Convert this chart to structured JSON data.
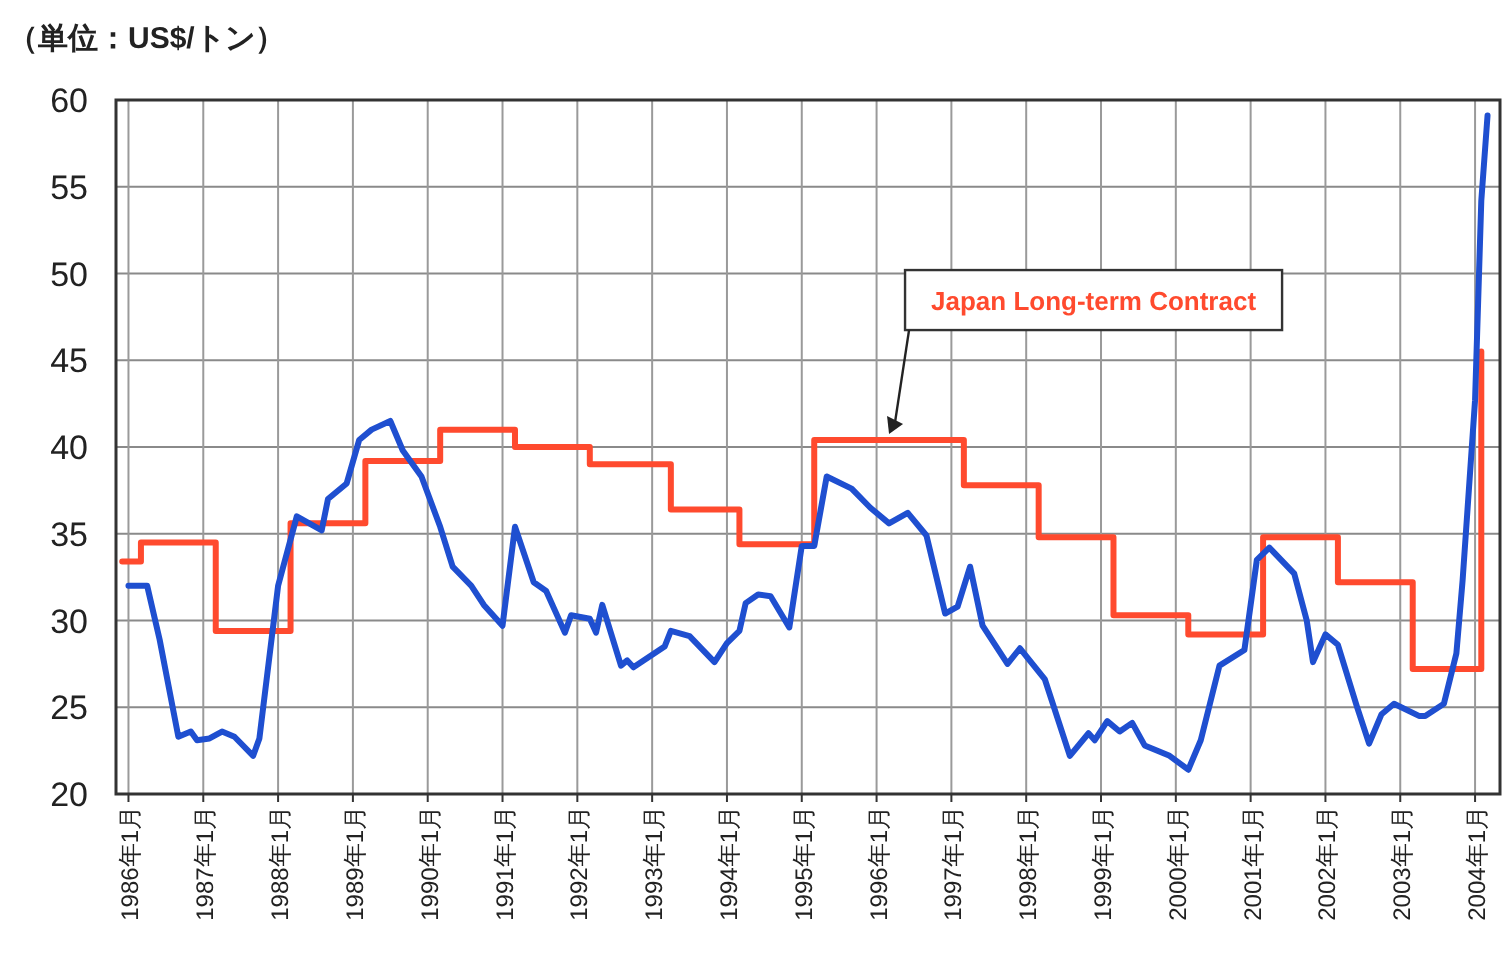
{
  "chart_data": {
    "type": "line",
    "ylabel": "（単位：US$/トン）",
    "xlim": [
      "1985-11",
      "2004-05"
    ],
    "ylim": [
      20,
      60
    ],
    "yticks": [
      20,
      25,
      30,
      35,
      40,
      45,
      50,
      55,
      60
    ],
    "xticks": [
      {
        "value": "1986-01",
        "label": "1986年1月"
      },
      {
        "value": "1987-01",
        "label": "1987年1月"
      },
      {
        "value": "1988-01",
        "label": "1988年1月"
      },
      {
        "value": "1989-01",
        "label": "1989年1月"
      },
      {
        "value": "1990-01",
        "label": "1990年1月"
      },
      {
        "value": "1991-01",
        "label": "1991年1月"
      },
      {
        "value": "1992-01",
        "label": "1992年1月"
      },
      {
        "value": "1993-01",
        "label": "1993年1月"
      },
      {
        "value": "1994-01",
        "label": "1994年1月"
      },
      {
        "value": "1995-01",
        "label": "1995年1月"
      },
      {
        "value": "1996-01",
        "label": "1996年1月"
      },
      {
        "value": "1997-01",
        "label": "1997年1月"
      },
      {
        "value": "1998-01",
        "label": "1998年1月"
      },
      {
        "value": "1999-01",
        "label": "1999年1月"
      },
      {
        "value": "2000-01",
        "label": "2000年1月"
      },
      {
        "value": "2001-01",
        "label": "2001年1月"
      },
      {
        "value": "2002-01",
        "label": "2002年1月"
      },
      {
        "value": "2003-01",
        "label": "2003年1月"
      },
      {
        "value": "2004-01",
        "label": "2004年1月"
      }
    ],
    "grid": true,
    "legend": false,
    "series": [
      {
        "name": "Japan Long-term Contract",
        "type": "step",
        "color": "#ff4a2e",
        "x": [
          "1985-12",
          "1986-03",
          "1987-03",
          "1988-03",
          "1989-03",
          "1990-03",
          "1991-03",
          "1992-03",
          "1993-04",
          "1994-03",
          "1995-03",
          "1997-03",
          "1998-03",
          "1999-03",
          "2000-03",
          "2001-03",
          "2002-03",
          "2003-03",
          "2004-02"
        ],
        "values": [
          33.4,
          34.5,
          29.4,
          35.6,
          39.2,
          41.0,
          40.0,
          39.0,
          36.4,
          34.4,
          40.4,
          37.8,
          34.8,
          30.3,
          29.2,
          34.8,
          32.2,
          27.2,
          45.5
        ]
      },
      {
        "color": "#1f4fd0",
        "x": [
          "1986-01",
          "1986-04",
          "1986-06",
          "1986-09",
          "1986-11",
          "1986-12",
          "1987-02",
          "1987-04",
          "1987-06",
          "1987-09",
          "1987-10",
          "1988-01",
          "1988-04",
          "1988-08",
          "1988-09",
          "1988-12",
          "1989-02",
          "1989-04",
          "1989-07",
          "1989-09",
          "1989-12",
          "1990-03",
          "1990-05",
          "1990-08",
          "1990-10",
          "1991-01",
          "1991-03",
          "1991-06",
          "1991-08",
          "1991-11",
          "1991-12",
          "1992-03",
          "1992-04",
          "1992-05",
          "1992-08",
          "1992-09",
          "1992-10",
          "1993-03",
          "1993-04",
          "1993-07",
          "1993-11",
          "1994-01",
          "1994-03",
          "1994-04",
          "1994-06",
          "1994-08",
          "1994-11",
          "1995-01",
          "1995-03",
          "1995-05",
          "1995-09",
          "1995-12",
          "1996-03",
          "1996-06",
          "1996-09",
          "1996-12",
          "1997-02",
          "1997-04",
          "1997-06",
          "1997-10",
          "1997-12",
          "1998-04",
          "1998-08",
          "1998-11",
          "1998-12",
          "1999-02",
          "1999-04",
          "1999-06",
          "1999-08",
          "1999-12",
          "2000-03",
          "2000-05",
          "2000-08",
          "2000-12",
          "2001-02",
          "2001-04",
          "2001-08",
          "2001-10",
          "2001-11",
          "2002-01",
          "2002-03",
          "2002-06",
          "2002-08",
          "2002-10",
          "2002-12",
          "2003-04",
          "2003-05",
          "2003-08",
          "2003-10",
          "2003-11",
          "2004-01",
          "2004-02",
          "2004-03"
        ],
        "values": [
          32.0,
          32.0,
          28.9,
          23.3,
          23.6,
          23.1,
          23.2,
          23.6,
          23.3,
          22.2,
          23.2,
          32.0,
          36.0,
          35.2,
          37.0,
          37.9,
          40.4,
          41.0,
          41.5,
          39.8,
          38.3,
          35.4,
          33.1,
          32.0,
          30.9,
          29.7,
          35.4,
          32.2,
          31.7,
          29.3,
          30.3,
          30.1,
          29.3,
          30.9,
          27.4,
          27.7,
          27.3,
          28.5,
          29.4,
          29.1,
          27.6,
          28.7,
          29.4,
          31.0,
          31.5,
          31.4,
          29.6,
          34.3,
          34.3,
          38.3,
          37.6,
          36.5,
          35.6,
          36.2,
          34.9,
          30.4,
          30.8,
          33.1,
          29.7,
          27.5,
          28.4,
          26.6,
          22.2,
          23.5,
          23.1,
          24.2,
          23.6,
          24.1,
          22.8,
          22.2,
          21.4,
          23.1,
          27.4,
          28.3,
          33.5,
          34.2,
          32.7,
          30.0,
          27.6,
          29.2,
          28.6,
          25.1,
          22.9,
          24.6,
          25.2,
          24.5,
          24.5,
          25.2,
          28.1,
          32.3,
          42.7,
          54.2,
          59.1
        ]
      }
    ]
  }
}
